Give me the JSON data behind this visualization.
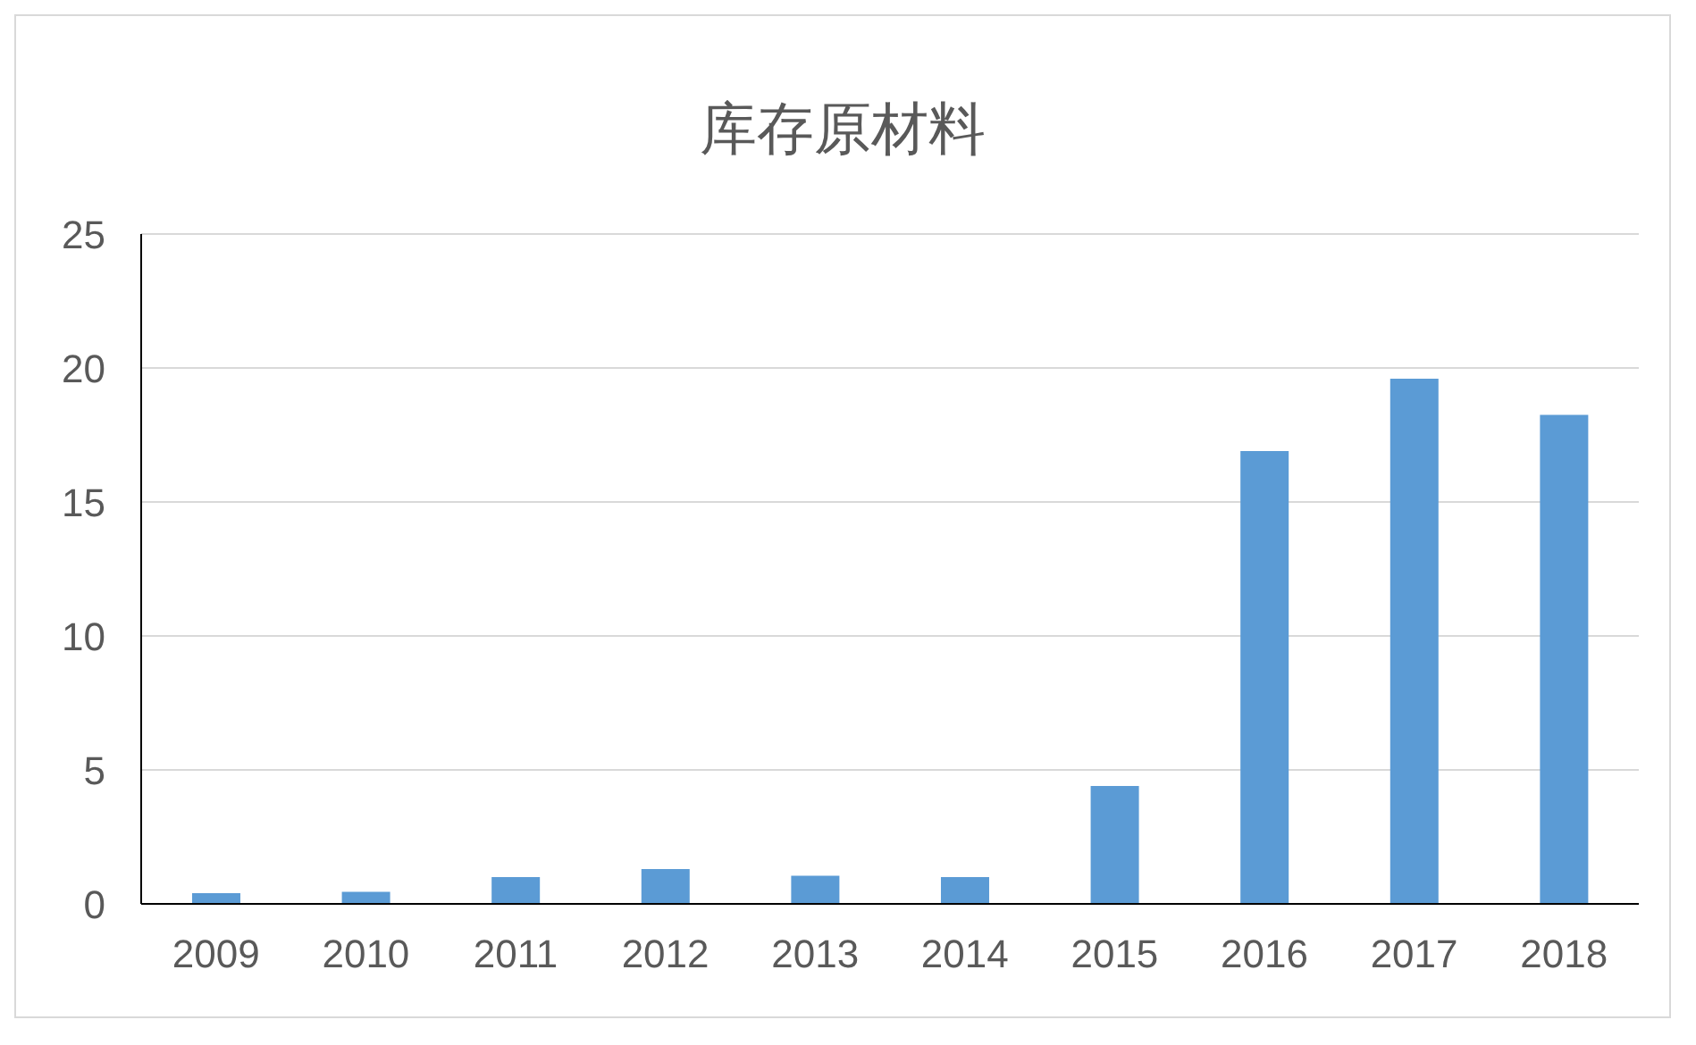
{
  "chart_data": {
    "type": "bar",
    "title": "库存原材料",
    "categories": [
      "2009",
      "2010",
      "2011",
      "2012",
      "2013",
      "2014",
      "2015",
      "2016",
      "2017",
      "2018"
    ],
    "values": [
      0.4,
      0.45,
      1.0,
      1.3,
      1.05,
      1.0,
      4.4,
      16.9,
      19.6,
      18.25
    ],
    "color": "#5b9bd5",
    "ylim": [
      0,
      25
    ],
    "yticks": [
      0,
      5,
      10,
      15,
      20,
      25
    ],
    "grid": "y"
  }
}
